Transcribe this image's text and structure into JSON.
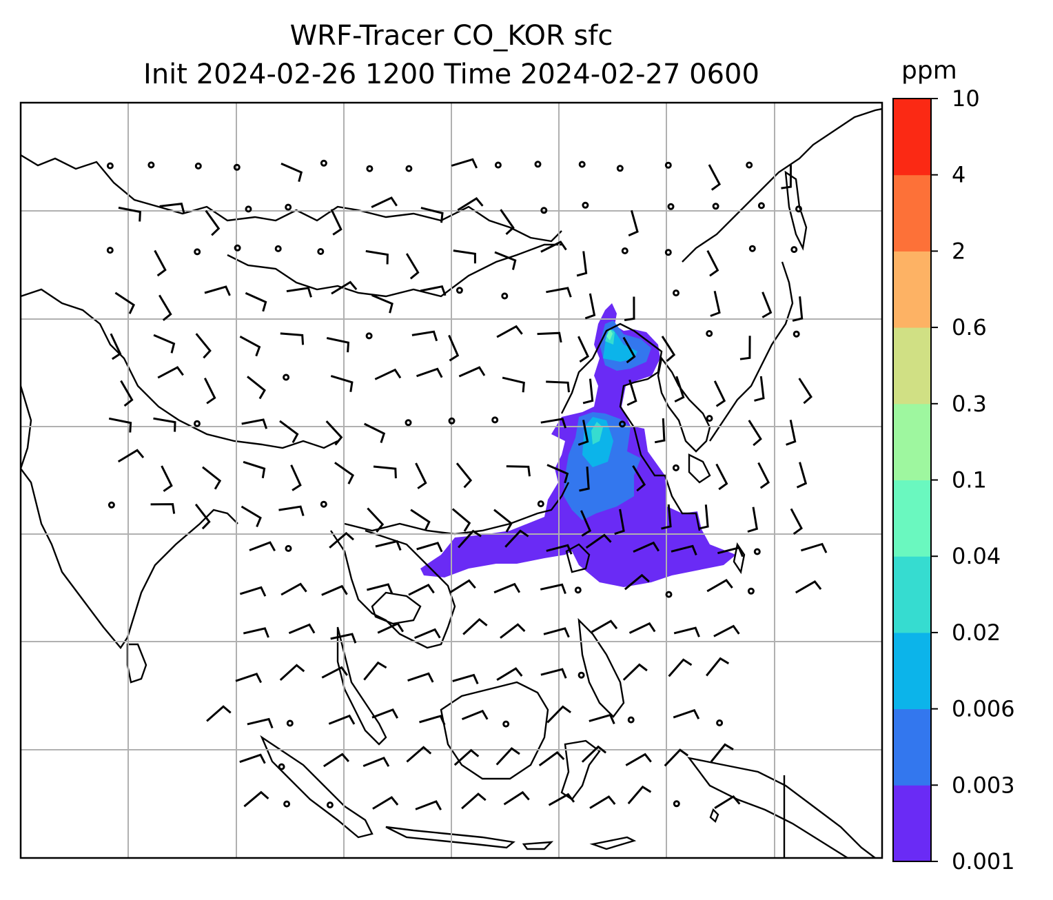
{
  "title": {
    "line1": "WRF-Tracer CO_KOR sfc",
    "line2": "Init 2024-02-26 1200 Time 2024-02-27 0600"
  },
  "colorbar": {
    "unit": "ppm",
    "levels": [
      "0.001",
      "0.003",
      "0.006",
      "0.02",
      "0.04",
      "0.1",
      "0.3",
      "0.6",
      "2",
      "4",
      "10"
    ],
    "colors": [
      "#6a2bf5",
      "#3377ee",
      "#0cb4ea",
      "#36dcd0",
      "#6af8bf",
      "#9ef79f",
      "#d0e084",
      "#fdb264",
      "#fd7138",
      "#fb2914"
    ]
  },
  "map": {
    "background": "#ffffff",
    "coastline_color": "#000000",
    "gridline_color": "#b0b0b0",
    "plume_colors": [
      "#6a2bf5",
      "#3377ee",
      "#0cb4ea",
      "#36dcd0",
      "#6af8bf"
    ]
  }
}
